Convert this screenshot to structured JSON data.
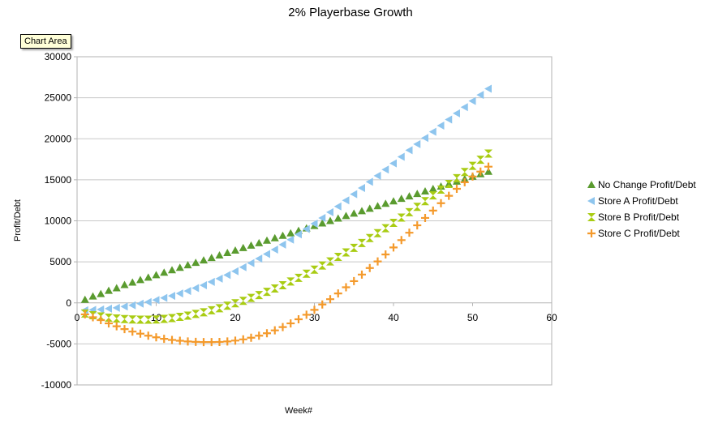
{
  "tooltip": "Chart Area",
  "chart_data": {
    "type": "scatter",
    "title": "2% Playerbase Growth",
    "xlabel": "Week#",
    "ylabel": "Profit/Debt",
    "xlim": [
      0,
      60
    ],
    "ylim": [
      -10000,
      30000
    ],
    "xticks": [
      "0",
      "10",
      "20",
      "30",
      "40",
      "50",
      "60"
    ],
    "yticks": [
      "-10000",
      "-5000",
      "0",
      "5000",
      "10000",
      "15000",
      "20000",
      "25000",
      "30000"
    ],
    "grid": "horizontal",
    "legend": "right",
    "x": [
      1,
      2,
      3,
      4,
      5,
      6,
      7,
      8,
      9,
      10,
      11,
      12,
      13,
      14,
      15,
      16,
      17,
      18,
      19,
      20,
      21,
      22,
      23,
      24,
      25,
      26,
      27,
      28,
      29,
      30,
      31,
      32,
      33,
      34,
      35,
      36,
      37,
      38,
      39,
      40,
      41,
      42,
      43,
      44,
      45,
      46,
      47,
      48,
      49,
      50,
      51,
      52
    ],
    "series": [
      {
        "name": "No Change Profit/Debt",
        "color": "#5a9b2f",
        "marker": "triangle-up",
        "values": [
          400,
          800,
          1100,
          1500,
          1800,
          2200,
          2500,
          2800,
          3100,
          3400,
          3700,
          4000,
          4300,
          4600,
          4900,
          5200,
          5500,
          5800,
          6100,
          6400,
          6700,
          7000,
          7300,
          7600,
          7900,
          8200,
          8500,
          8800,
          9100,
          9400,
          9700,
          10000,
          10300,
          10600,
          10900,
          11200,
          11500,
          11800,
          12100,
          12400,
          12700,
          13000,
          13300,
          13600,
          13900,
          14200,
          14500,
          14800,
          15100,
          15400,
          15700,
          16000
        ]
      },
      {
        "name": "Store A Profit/Debt",
        "color": "#8ec5ee",
        "marker": "triangle-left",
        "values": [
          -900,
          -850,
          -800,
          -700,
          -600,
          -450,
          -300,
          -100,
          100,
          350,
          600,
          850,
          1150,
          1450,
          1800,
          2150,
          2550,
          2950,
          3400,
          3850,
          4350,
          4850,
          5400,
          5950,
          6500,
          7100,
          7700,
          8350,
          9000,
          9650,
          10350,
          11050,
          11750,
          12500,
          13250,
          14000,
          14750,
          15500,
          16250,
          17000,
          17800,
          18600,
          19350,
          20100,
          20850,
          21600,
          22350,
          23100,
          23850,
          24600,
          25350,
          26100
        ]
      },
      {
        "name": "Store B Profit/Debt",
        "color": "#a9cc13",
        "marker": "hourglass",
        "values": [
          -1300,
          -1500,
          -1650,
          -1800,
          -1900,
          -1980,
          -2020,
          -2050,
          -2050,
          -2020,
          -1950,
          -1850,
          -1700,
          -1550,
          -1350,
          -1150,
          -900,
          -650,
          -350,
          -50,
          250,
          600,
          950,
          1350,
          1750,
          2150,
          2600,
          3050,
          3550,
          4050,
          4550,
          5050,
          5600,
          6150,
          6700,
          7300,
          7900,
          8500,
          9100,
          9750,
          10400,
          11050,
          11700,
          12400,
          13100,
          13800,
          14500,
          15200,
          15950,
          16700,
          17450,
          18200
        ]
      },
      {
        "name": "Store C Profit/Debt",
        "color": "#f49a2c",
        "marker": "plus",
        "values": [
          -1400,
          -1750,
          -2100,
          -2500,
          -2850,
          -3200,
          -3500,
          -3750,
          -4000,
          -4200,
          -4380,
          -4520,
          -4620,
          -4700,
          -4750,
          -4780,
          -4780,
          -4760,
          -4700,
          -4600,
          -4450,
          -4250,
          -4000,
          -3700,
          -3350,
          -2950,
          -2500,
          -2000,
          -1450,
          -850,
          -200,
          450,
          1150,
          1900,
          2650,
          3450,
          4250,
          5050,
          5900,
          6750,
          7650,
          8550,
          9450,
          10350,
          11250,
          12150,
          13050,
          13900,
          14700,
          15400,
          16000,
          16600
        ]
      }
    ]
  }
}
